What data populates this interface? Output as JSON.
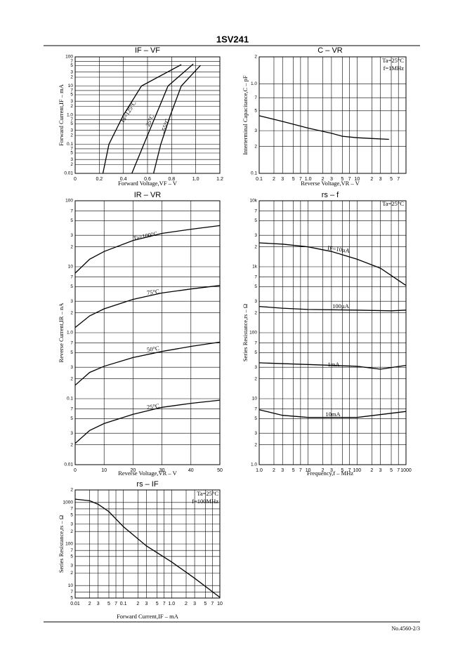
{
  "header": {
    "title": "1SV241"
  },
  "chart_data": [
    {
      "type": "line",
      "title": "IF – VF",
      "xlabel": "Forward Voltage,VF – V",
      "ylabel": "Forward Current,IF – mA",
      "xscale": "linear",
      "yscale": "log",
      "grid": true,
      "xlim": [
        0,
        1.2
      ],
      "xticks": [
        0,
        0.2,
        0.4,
        0.6,
        0.8,
        {
          "value": 1,
          "label": "1.0"
        },
        1.2
      ],
      "ylim": [
        0.01,
        100
      ],
      "yticks": [
        0.01,
        {
          "value": 0.02,
          "label": "2"
        },
        {
          "value": 0.03,
          "label": "3"
        },
        {
          "value": 0.05,
          "label": "5"
        },
        {
          "value": 0.07,
          "label": "7"
        },
        0.1,
        {
          "value": 0.2,
          "label": "2"
        },
        {
          "value": 0.3,
          "label": "3"
        },
        {
          "value": 0.5,
          "label": "5"
        },
        {
          "value": 0.7,
          "label": "7"
        },
        {
          "value": 1,
          "label": "1.0"
        },
        2,
        3,
        5,
        7,
        10,
        {
          "value": 20,
          "label": "2"
        },
        {
          "value": 30,
          "label": "3"
        },
        {
          "value": 50,
          "label": "5"
        },
        {
          "value": 70,
          "label": "7"
        },
        100
      ],
      "series": [
        {
          "name": "Ta=125°C",
          "color": "#000000",
          "x": [
            0.23,
            0.28,
            0.4,
            0.55,
            0.88
          ],
          "values": [
            0.01,
            0.1,
            1,
            10,
            54
          ]
        },
        {
          "name": "25°C",
          "color": "#000000",
          "x": [
            0.47,
            0.57,
            0.67,
            0.77,
            0.98
          ],
          "values": [
            0.01,
            0.1,
            1,
            10,
            57
          ]
        },
        {
          "name": "–55°C",
          "color": "#000000",
          "x": [
            0.65,
            0.71,
            0.79,
            0.88,
            1.04
          ],
          "values": [
            0.01,
            0.1,
            1,
            10,
            51
          ]
        }
      ]
    },
    {
      "type": "line",
      "title": "C – VR",
      "xlabel": "Reverse Voltage,VR – V",
      "ylabel": "Interterminal Capacitance,C – pF",
      "xscale": "log",
      "yscale": "log",
      "grid": true,
      "annotations": [
        "Ta=25°C",
        "f=1MHz"
      ],
      "xlim": [
        0.1,
        100
      ],
      "xticks": [
        0.1,
        {
          "value": 0.2,
          "label": "2"
        },
        {
          "value": 0.3,
          "label": "3"
        },
        {
          "value": 0.5,
          "label": "5"
        },
        {
          "value": 0.7,
          "label": "7"
        },
        {
          "value": 1,
          "label": "1.0"
        },
        2,
        3,
        5,
        7,
        10,
        {
          "value": 20,
          "label": "2"
        },
        {
          "value": 30,
          "label": "3"
        },
        {
          "value": 50,
          "label": "5"
        },
        {
          "value": 70,
          "label": "7"
        }
      ],
      "ylim": [
        0.1,
        2
      ],
      "yticks": [
        0.1,
        {
          "value": 0.2,
          "label": "2"
        },
        {
          "value": 0.3,
          "label": "3"
        },
        {
          "value": 0.5,
          "label": "5"
        },
        {
          "value": 0.7,
          "label": "7"
        },
        {
          "value": 1,
          "label": "1.0"
        },
        2
      ],
      "series": [
        {
          "color": "#000000",
          "x": [
            0.1,
            0.3,
            1,
            3,
            5,
            10,
            20,
            45
          ],
          "values": [
            0.44,
            0.38,
            0.32,
            0.28,
            0.26,
            0.25,
            0.245,
            0.24
          ]
        }
      ]
    },
    {
      "type": "line",
      "title": "IR – VR",
      "xlabel": "Reverse Voltage,VR – V",
      "ylabel": "Reverse Current,IR – nA",
      "xscale": "linear",
      "yscale": "log",
      "grid": true,
      "xlim": [
        0,
        50
      ],
      "xticks": [
        0,
        10,
        20,
        30,
        40,
        50
      ],
      "ylim": [
        0.01,
        100
      ],
      "yticks": [
        0.01,
        {
          "value": 0.02,
          "label": "2"
        },
        {
          "value": 0.03,
          "label": "3"
        },
        {
          "value": 0.05,
          "label": "5"
        },
        {
          "value": 0.07,
          "label": "7"
        },
        0.1,
        {
          "value": 0.2,
          "label": "2"
        },
        {
          "value": 0.3,
          "label": "3"
        },
        {
          "value": 0.5,
          "label": "5"
        },
        {
          "value": 0.7,
          "label": "7"
        },
        {
          "value": 1,
          "label": "1.0"
        },
        2,
        3,
        5,
        7,
        10,
        {
          "value": 20,
          "label": "2"
        },
        {
          "value": 30,
          "label": "3"
        },
        {
          "value": 50,
          "label": "5"
        },
        {
          "value": 70,
          "label": "7"
        },
        100
      ],
      "series": [
        {
          "name": "Ta=100°C",
          "color": "#000000",
          "x": [
            0,
            5,
            10,
            20,
            30,
            40,
            50
          ],
          "values": [
            8,
            13,
            17,
            25,
            32,
            37,
            42
          ]
        },
        {
          "name": "75°C",
          "color": "#000000",
          "x": [
            0,
            5,
            10,
            20,
            30,
            40,
            50
          ],
          "values": [
            1.2,
            1.8,
            2.3,
            3.2,
            4,
            4.6,
            5.2
          ]
        },
        {
          "name": "50°C",
          "color": "#000000",
          "x": [
            0,
            5,
            10,
            20,
            30,
            40,
            50
          ],
          "values": [
            0.16,
            0.25,
            0.31,
            0.42,
            0.52,
            0.62,
            0.72
          ]
        },
        {
          "name": "25°C",
          "color": "#000000",
          "x": [
            0,
            5,
            10,
            20,
            30,
            40,
            50
          ],
          "values": [
            0.021,
            0.033,
            0.042,
            0.058,
            0.074,
            0.085,
            0.095
          ]
        }
      ]
    },
    {
      "type": "line",
      "title": "rs – f",
      "xlabel": "Frequency,f – MHz",
      "ylabel": "Series Resistance,rs – Ω",
      "xscale": "log",
      "yscale": "log",
      "grid": true,
      "annotations": [
        "Ta=25°C"
      ],
      "xlim": [
        1,
        1000
      ],
      "xticks": [
        {
          "value": 1,
          "label": "1.0"
        },
        2,
        3,
        5,
        7,
        10,
        {
          "value": 20,
          "label": "2"
        },
        {
          "value": 30,
          "label": "3"
        },
        {
          "value": 50,
          "label": "5"
        },
        {
          "value": 70,
          "label": "7"
        },
        100,
        {
          "value": 200,
          "label": "2"
        },
        {
          "value": 300,
          "label": "3"
        },
        {
          "value": 500,
          "label": "5"
        },
        {
          "value": 700,
          "label": "7"
        },
        1000
      ],
      "ylim": [
        1,
        10000
      ],
      "yticks": [
        {
          "value": 1,
          "label": "1.0"
        },
        2,
        3,
        5,
        7,
        10,
        {
          "value": 20,
          "label": "2"
        },
        {
          "value": 30,
          "label": "3"
        },
        {
          "value": 50,
          "label": "5"
        },
        {
          "value": 70,
          "label": "7"
        },
        100,
        {
          "value": 200,
          "label": "2"
        },
        {
          "value": 300,
          "label": "3"
        },
        {
          "value": 500,
          "label": "5"
        },
        {
          "value": 700,
          "label": "7"
        },
        {
          "value": 1000,
          "label": "1k"
        },
        {
          "value": 2000,
          "label": "2"
        },
        {
          "value": 3000,
          "label": "3"
        },
        {
          "value": 5000,
          "label": "5"
        },
        {
          "value": 7000,
          "label": "7"
        },
        {
          "value": 10000,
          "label": "10k"
        }
      ],
      "series": [
        {
          "name": "IF=10µA",
          "color": "#000000",
          "x": [
            1,
            3,
            10,
            30,
            100,
            300,
            1000
          ],
          "values": [
            2300,
            2200,
            2000,
            1700,
            1300,
            950,
            520
          ]
        },
        {
          "name": "100µA",
          "color": "#000000",
          "x": [
            1,
            3,
            10,
            100,
            500,
            1000
          ],
          "values": [
            250,
            235,
            225,
            220,
            215,
            220
          ]
        },
        {
          "name": "1mA",
          "color": "#000000",
          "x": [
            1,
            10,
            100,
            300,
            1000
          ],
          "values": [
            35,
            33,
            31,
            28,
            32
          ]
        },
        {
          "name": "10mA",
          "color": "#000000",
          "x": [
            1,
            3,
            10,
            100,
            1000
          ],
          "values": [
            6.8,
            5.6,
            5.2,
            5.2,
            6.4
          ]
        }
      ]
    },
    {
      "type": "line",
      "title": "rs – IF",
      "xlabel": "Forward Current,IF – mA",
      "ylabel": "Series Resistance,rs – Ω",
      "xscale": "log",
      "yscale": "log",
      "grid": true,
      "annotations": [
        "Ta=25°C",
        "f=100MHz"
      ],
      "xlim": [
        0.01,
        10
      ],
      "xticks": [
        0.01,
        {
          "value": 0.02,
          "label": "2"
        },
        {
          "value": 0.03,
          "label": "3"
        },
        {
          "value": 0.05,
          "label": "5"
        },
        {
          "value": 0.07,
          "label": "7"
        },
        0.1,
        {
          "value": 0.2,
          "label": "2"
        },
        {
          "value": 0.3,
          "label": "3"
        },
        {
          "value": 0.5,
          "label": "5"
        },
        {
          "value": 0.7,
          "label": "7"
        },
        {
          "value": 1,
          "label": "1.0"
        },
        2,
        3,
        5,
        7,
        10
      ],
      "ylim": [
        5,
        2000
      ],
      "yticks": [
        5,
        7,
        10,
        {
          "value": 20,
          "label": "2"
        },
        {
          "value": 30,
          "label": "3"
        },
        {
          "value": 50,
          "label": "5"
        },
        {
          "value": 70,
          "label": "7"
        },
        100,
        {
          "value": 200,
          "label": "2"
        },
        {
          "value": 300,
          "label": "3"
        },
        {
          "value": 500,
          "label": "5"
        },
        {
          "value": 700,
          "label": "7"
        },
        1000,
        {
          "value": 2000,
          "label": "2"
        }
      ],
      "series": [
        {
          "color": "#000000",
          "x": [
            0.01,
            0.02,
            0.03,
            0.05,
            0.1,
            0.3,
            1,
            3,
            10
          ],
          "values": [
            1200,
            1100,
            900,
            600,
            260,
            90,
            37,
            15,
            5.2
          ]
        }
      ]
    }
  ],
  "footer": {
    "text": "No.4560-2/3"
  }
}
